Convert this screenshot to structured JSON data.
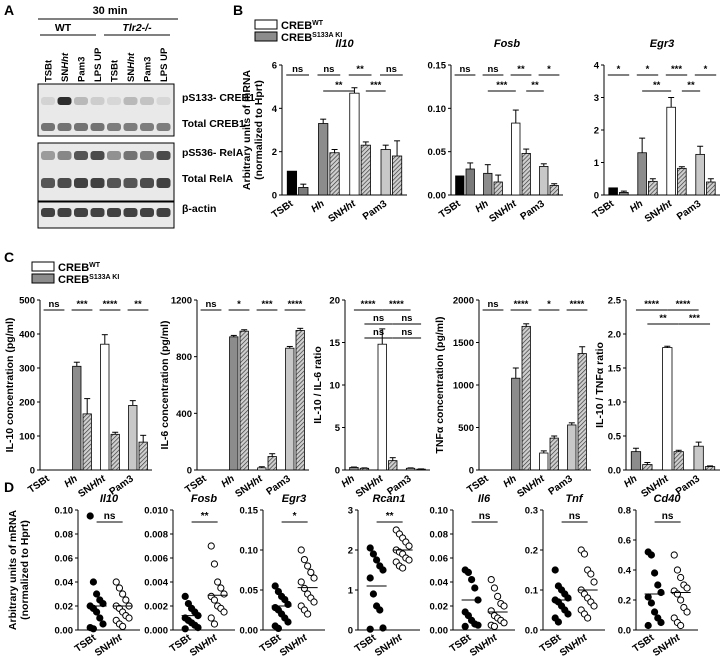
{
  "panel_letters": [
    "A",
    "B",
    "C",
    "D"
  ],
  "colors": {
    "wt": "#ffffff",
    "ki": "#8c8c8c",
    "black": "#000000",
    "grey": "#b5b5b5",
    "light": "#d8d8d8"
  },
  "legend": {
    "wt": "CREB",
    "wt_sup": "WT",
    "ki": "CREB",
    "ki_sup": "S133A KI"
  },
  "panel_a": {
    "time": "30 min",
    "groups": [
      "WT",
      "Tlr2-/-"
    ],
    "lanes": [
      "TSBt",
      "SNHht",
      "Pam3",
      "LPS UP",
      "TSBt",
      "SNHht",
      "Pam3",
      "LPS UP"
    ],
    "blots": [
      "pS133- CREB1",
      "Total CREB1",
      "pS536- RelA",
      "Total RelA",
      "β-actin"
    ]
  },
  "panel_b_ylabel": [
    "Arbitrary units of mRNA",
    "(normalized to Hprt)"
  ],
  "panel_c_ylabels": [
    "IL-10 concentration (pg/ml)",
    "IL-6 concentration (pg/ml)",
    "IL-10 / IL-6 ratio",
    "TNFα concentration (pg/ml)",
    "IL-10 / TNFα ratio"
  ],
  "panel_d_ylabel": [
    "Arbitrary units of mRNA",
    "(normalized to Hprt)"
  ],
  "chart_data": [
    {
      "panel": "B",
      "type": "bar",
      "title": "Il10",
      "categories": [
        "TSBt",
        "Hh",
        "SNHht",
        "Pam3"
      ],
      "ylim": [
        0,
        6
      ],
      "yticks": [
        "0",
        "2",
        "4",
        "6"
      ],
      "series": [
        {
          "name": "CREBWT",
          "values": [
            1.1,
            3.3,
            4.7,
            2.1
          ],
          "errors": [
            0,
            0.2,
            0.25,
            0.2
          ]
        },
        {
          "name": "CREBS133A KI",
          "values": [
            0.35,
            1.95,
            2.3,
            1.8
          ],
          "errors": [
            0.15,
            0.15,
            0.15,
            0.7
          ]
        }
      ],
      "pair_sig": [
        "ns",
        "ns",
        "**",
        "ns"
      ],
      "brackets": [
        {
          "from": [
            1,
            0
          ],
          "to": [
            2,
            0
          ],
          "text": "**"
        },
        {
          "from": [
            2,
            1
          ],
          "to": [
            3,
            0
          ],
          "text": "***"
        }
      ]
    },
    {
      "panel": "B",
      "type": "bar",
      "title": "Fosb",
      "categories": [
        "TSBt",
        "Hh",
        "SNHht",
        "Pam3"
      ],
      "ylim": [
        0,
        0.15
      ],
      "yticks": [
        "0.00",
        "0.05",
        "0.10",
        "0.15"
      ],
      "series": [
        {
          "name": "CREBWT",
          "values": [
            0.022,
            0.025,
            0.083,
            0.033
          ],
          "errors": [
            0,
            0.01,
            0.015,
            0.003
          ]
        },
        {
          "name": "CREBS133A KI",
          "values": [
            0.03,
            0.015,
            0.048,
            0.011
          ],
          "errors": [
            0.007,
            0.008,
            0.005,
            0.002
          ]
        }
      ],
      "pair_sig": [
        "ns",
        "ns",
        "**",
        "*"
      ],
      "brackets": [
        {
          "from": [
            1,
            0
          ],
          "to": [
            2,
            0
          ],
          "text": "***"
        },
        {
          "from": [
            2,
            1
          ],
          "to": [
            3,
            0
          ],
          "text": "**"
        }
      ]
    },
    {
      "panel": "B",
      "type": "bar",
      "title": "Egr3",
      "categories": [
        "TSBt",
        "Hh",
        "SNHht",
        "Pam3"
      ],
      "ylim": [
        0,
        4
      ],
      "yticks": [
        "0",
        "1",
        "2",
        "3",
        "4"
      ],
      "series": [
        {
          "name": "CREBWT",
          "values": [
            0.22,
            1.3,
            2.7,
            1.25
          ],
          "errors": [
            0,
            0.45,
            0.3,
            0.25
          ]
        },
        {
          "name": "CREBS133A KI",
          "values": [
            0.08,
            0.42,
            0.82,
            0.4
          ],
          "errors": [
            0.04,
            0.08,
            0.05,
            0.1
          ]
        }
      ],
      "pair_sig": [
        "*",
        "*",
        "***",
        "*"
      ],
      "brackets": [
        {
          "from": [
            1,
            0
          ],
          "to": [
            2,
            0
          ],
          "text": "**"
        },
        {
          "from": [
            2,
            1
          ],
          "to": [
            3,
            0
          ],
          "text": "**"
        }
      ]
    },
    {
      "panel": "C",
      "type": "bar",
      "categories": [
        "TSBt",
        "Hh",
        "SNHht",
        "Pam3"
      ],
      "ylim": [
        0,
        500
      ],
      "yticks": [
        "0",
        "100",
        "200",
        "300",
        "400",
        "500"
      ],
      "series": [
        {
          "name": "CREBWT",
          "values": [
            0,
            305,
            370,
            190
          ],
          "errors": [
            0,
            12,
            28,
            14
          ]
        },
        {
          "name": "CREBS133A KI",
          "values": [
            0,
            165,
            105,
            82
          ],
          "errors": [
            0,
            45,
            6,
            20
          ]
        }
      ],
      "pair_sig": [
        "ns",
        "***",
        "****",
        "**"
      ]
    },
    {
      "panel": "C",
      "type": "bar",
      "categories": [
        "TSBt",
        "Hh",
        "SNHht",
        "Pam3"
      ],
      "ylim": [
        0,
        1200
      ],
      "yticks": [
        "0",
        "400",
        "800",
        "1200"
      ],
      "series": [
        {
          "name": "CREBWT",
          "values": [
            0,
            940,
            15,
            860
          ],
          "errors": [
            0,
            10,
            8,
            12
          ]
        },
        {
          "name": "CREBS133A KI",
          "values": [
            0,
            980,
            95,
            985
          ],
          "errors": [
            0,
            10,
            20,
            15
          ]
        }
      ],
      "pair_sig": [
        "ns",
        "*",
        "***",
        "****"
      ]
    },
    {
      "panel": "C",
      "type": "bar",
      "categories": [
        "Hh",
        "SNHht",
        "Pam3"
      ],
      "ylim": [
        0,
        20
      ],
      "yticks": [
        "0",
        "5",
        "10",
        "15",
        "20"
      ],
      "series": [
        {
          "name": "CREBWT",
          "values": [
            0.3,
            14.8,
            0.2
          ],
          "errors": [
            0.05,
            1.8,
            0.05
          ]
        },
        {
          "name": "CREBS133A KI",
          "values": [
            0.2,
            1.1,
            0.1
          ],
          "errors": [
            0.05,
            0.35,
            0.03
          ]
        }
      ],
      "brackets": [
        {
          "from": [
            0,
            0
          ],
          "to": [
            1,
            0
          ],
          "text": "****",
          "level": 2
        },
        {
          "from": [
            1,
            0
          ],
          "to": [
            2,
            0
          ],
          "text": "****",
          "level": 2
        },
        {
          "from": [
            0,
            1
          ],
          "to": [
            1,
            1
          ],
          "text": "ns",
          "level": 1
        },
        {
          "from": [
            1,
            1
          ],
          "to": [
            2,
            1
          ],
          "text": "ns",
          "level": 1
        },
        {
          "from": [
            0,
            1
          ],
          "to": [
            1,
            1
          ],
          "text": "ns",
          "level": 0
        },
        {
          "from": [
            1,
            1
          ],
          "to": [
            2,
            1
          ],
          "text": "ns",
          "level": 0
        }
      ]
    },
    {
      "panel": "C",
      "type": "bar",
      "categories": [
        "TSBt",
        "Hh",
        "SNHht",
        "Pam3"
      ],
      "ylim": [
        0,
        2000
      ],
      "yticks": [
        "0",
        "500",
        "1000",
        "1500",
        "2000"
      ],
      "series": [
        {
          "name": "CREBWT",
          "values": [
            0,
            1080,
            200,
            530
          ],
          "errors": [
            0,
            120,
            25,
            25
          ]
        },
        {
          "name": "CREBS133A KI",
          "values": [
            0,
            1690,
            375,
            1370
          ],
          "errors": [
            0,
            30,
            25,
            80
          ]
        }
      ],
      "pair_sig": [
        "ns",
        "****",
        "*",
        "****"
      ]
    },
    {
      "panel": "C",
      "type": "bar",
      "categories": [
        "Hh",
        "SNHht",
        "Pam3"
      ],
      "ylim": [
        0,
        2.5
      ],
      "yticks": [
        "0.0",
        "0.5",
        "1.0",
        "1.5",
        "2.0",
        "2.5"
      ],
      "series": [
        {
          "name": "CREBWT",
          "values": [
            0.27,
            1.8,
            0.35
          ],
          "errors": [
            0.05,
            0.02,
            0.06
          ]
        },
        {
          "name": "CREBS133A KI",
          "values": [
            0.08,
            0.27,
            0.05
          ],
          "errors": [
            0.03,
            0.02,
            0.01
          ]
        }
      ],
      "brackets": [
        {
          "from": [
            0,
            0
          ],
          "to": [
            1,
            0
          ],
          "text": "****",
          "level": 2
        },
        {
          "from": [
            1,
            0
          ],
          "to": [
            2,
            0
          ],
          "text": "****",
          "level": 2
        },
        {
          "from": [
            0,
            1
          ],
          "to": [
            1,
            1
          ],
          "text": "**",
          "level": 1
        },
        {
          "from": [
            1,
            1
          ],
          "to": [
            2,
            1
          ],
          "text": "***",
          "level": 1
        }
      ]
    },
    {
      "panel": "D",
      "type": "scatter",
      "title": "Il10",
      "categories": [
        "TSBt",
        "SNHht"
      ],
      "ylim": [
        0,
        0.1
      ],
      "yticks": [
        "0.00",
        "0.02",
        "0.04",
        "0.06",
        "0.08",
        "0.10"
      ],
      "sig": "ns",
      "groups": [
        {
          "values": [
            0.095,
            0.04,
            0.03,
            0.025,
            0.022,
            0.02,
            0.018,
            0.015,
            0.01,
            0.005,
            0.002,
            0.001
          ],
          "mean": 0.02
        },
        {
          "values": [
            0.04,
            0.035,
            0.03,
            0.025,
            0.02,
            0.02,
            0.018,
            0.015,
            0.012,
            0.01,
            0.008,
            0.005,
            0.003
          ],
          "mean": 0.02
        }
      ]
    },
    {
      "panel": "D",
      "type": "scatter",
      "title": "Fosb",
      "categories": [
        "TSBt",
        "SNHht"
      ],
      "ylim": [
        0,
        0.01
      ],
      "yticks": [
        "0.000",
        "0.002",
        "0.004",
        "0.006",
        "0.008",
        "0.010"
      ],
      "sig": "**",
      "groups": [
        {
          "values": [
            0.0028,
            0.0022,
            0.0018,
            0.0015,
            0.0012,
            0.001,
            0.0008,
            0.0006,
            0.0004,
            0.0002,
            0.0001
          ],
          "mean": 0.0012
        },
        {
          "values": [
            0.007,
            0.0055,
            0.004,
            0.0035,
            0.003,
            0.0028,
            0.0025,
            0.002,
            0.0018,
            0.0015,
            0.001,
            0.0005
          ],
          "mean": 0.0029
        }
      ]
    },
    {
      "panel": "D",
      "type": "scatter",
      "title": "Egr3",
      "categories": [
        "TSBt",
        "SNHht"
      ],
      "ylim": [
        0,
        0.15
      ],
      "yticks": [
        "0.00",
        "0.05",
        "0.10",
        "0.15"
      ],
      "sig": "*",
      "groups": [
        {
          "values": [
            0.055,
            0.048,
            0.042,
            0.038,
            0.032,
            0.028,
            0.025,
            0.02,
            0.015,
            0.01,
            0.005,
            0.002
          ],
          "mean": 0.03
        },
        {
          "values": [
            0.1,
            0.088,
            0.08,
            0.072,
            0.065,
            0.06,
            0.052,
            0.045,
            0.04,
            0.035,
            0.03,
            0.025,
            0.02
          ],
          "mean": 0.053
        }
      ]
    },
    {
      "panel": "D",
      "type": "scatter",
      "title": "Rcan1",
      "categories": [
        "TSBt",
        "SNHht"
      ],
      "ylim": [
        0,
        3
      ],
      "yticks": [
        "0",
        "1",
        "2",
        "3"
      ],
      "sig": "**",
      "groups": [
        {
          "values": [
            2.05,
            1.9,
            1.75,
            1.6,
            1.5,
            1.3,
            0.9,
            0.6,
            0.5,
            0.05,
            0.02
          ],
          "mean": 1.1
        },
        {
          "values": [
            2.5,
            2.4,
            2.3,
            2.2,
            2.1,
            2.0,
            1.95,
            1.9,
            1.8,
            1.75,
            1.7,
            1.6,
            1.55
          ],
          "mean": 2.0
        }
      ]
    },
    {
      "panel": "D",
      "type": "scatter",
      "title": "Il6",
      "categories": [
        "TSBt",
        "SNHht"
      ],
      "ylim": [
        0,
        0.1
      ],
      "yticks": [
        "0.00",
        "0.02",
        "0.04",
        "0.06",
        "0.08",
        "0.10"
      ],
      "sig": "ns",
      "groups": [
        {
          "values": [
            0.05,
            0.048,
            0.042,
            0.035,
            0.025,
            0.015,
            0.012,
            0.008,
            0.005,
            0.004,
            0.003
          ],
          "mean": 0.025
        },
        {
          "values": [
            0.042,
            0.035,
            0.028,
            0.022,
            0.02,
            0.016,
            0.012,
            0.01,
            0.008,
            0.006,
            0.004,
            0.003
          ],
          "mean": 0.015
        }
      ]
    },
    {
      "panel": "D",
      "type": "scatter",
      "title": "Tnf",
      "categories": [
        "TSBt",
        "SNHht"
      ],
      "ylim": [
        0,
        0.3
      ],
      "yticks": [
        "0.0",
        "0.1",
        "0.2",
        "0.3"
      ],
      "sig": "ns",
      "groups": [
        {
          "values": [
            0.15,
            0.11,
            0.1,
            0.09,
            0.08,
            0.075,
            0.07,
            0.06,
            0.05,
            0.04,
            0.03,
            0.02
          ],
          "mean": 0.075
        },
        {
          "values": [
            0.2,
            0.19,
            0.15,
            0.14,
            0.12,
            0.1,
            0.09,
            0.08,
            0.07,
            0.06,
            0.05,
            0.04,
            0.03
          ],
          "mean": 0.1
        }
      ]
    },
    {
      "panel": "D",
      "type": "scatter",
      "title": "Cd40",
      "categories": [
        "TSBt",
        "SNHht"
      ],
      "ylim": [
        0,
        0.8
      ],
      "yticks": [
        "0.0",
        "0.2",
        "0.4",
        "0.6",
        "0.8"
      ],
      "sig": "ns",
      "groups": [
        {
          "values": [
            0.52,
            0.5,
            0.38,
            0.3,
            0.25,
            0.22,
            0.18,
            0.12,
            0.08,
            0.05,
            0.03
          ],
          "mean": 0.24
        },
        {
          "values": [
            0.5,
            0.4,
            0.35,
            0.3,
            0.28,
            0.26,
            0.24,
            0.2,
            0.15,
            0.12,
            0.08,
            0.05,
            0.03
          ],
          "mean": 0.25
        }
      ]
    }
  ]
}
